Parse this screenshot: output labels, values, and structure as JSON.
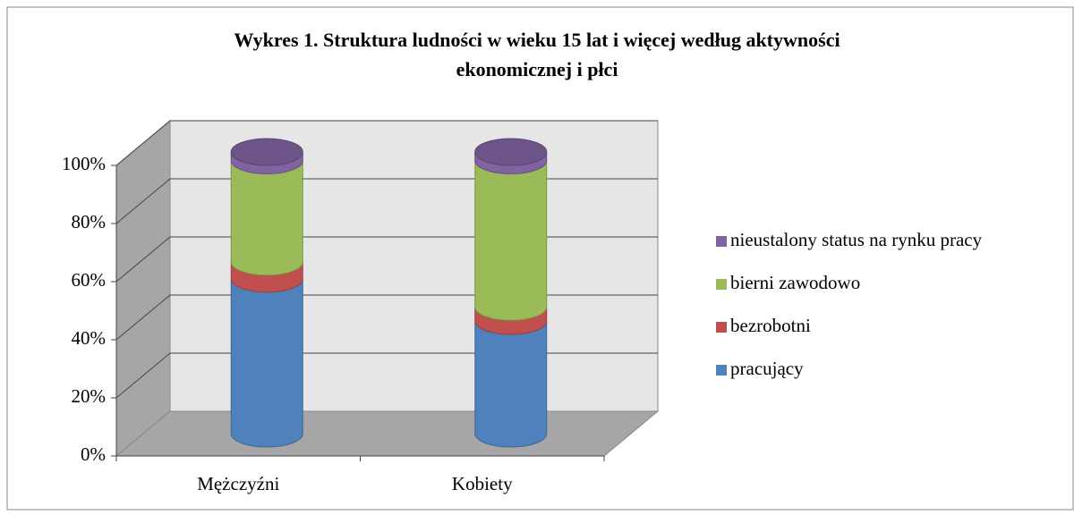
{
  "chart_data": {
    "type": "bar3d-stacked",
    "title": "Wykres 1. Struktura ludności w wieku 15 lat i więcej według aktywności ekonomicznej i płci",
    "categories": [
      "Mężczyźni",
      "Kobiety"
    ],
    "series": [
      {
        "name": "pracujący",
        "color": "#4f81bd",
        "values": [
          55,
          40
        ]
      },
      {
        "name": "bezrobotni",
        "color": "#c0504d",
        "values": [
          6,
          5
        ]
      },
      {
        "name": "bierni zawodowo",
        "color": "#9bbb59",
        "values": [
          36,
          52
        ]
      },
      {
        "name": "nieustalony status na rynku pracy",
        "color": "#8064a2",
        "values": [
          3,
          3
        ]
      }
    ],
    "ylim": [
      0,
      100
    ],
    "yticks": [
      {
        "value": 0,
        "label": "0%"
      },
      {
        "value": 20,
        "label": "20%"
      },
      {
        "value": 40,
        "label": "40%"
      },
      {
        "value": 60,
        "label": "60%"
      },
      {
        "value": 80,
        "label": "80%"
      },
      {
        "value": 100,
        "label": "100%"
      }
    ],
    "grid": true,
    "legend": "right"
  }
}
